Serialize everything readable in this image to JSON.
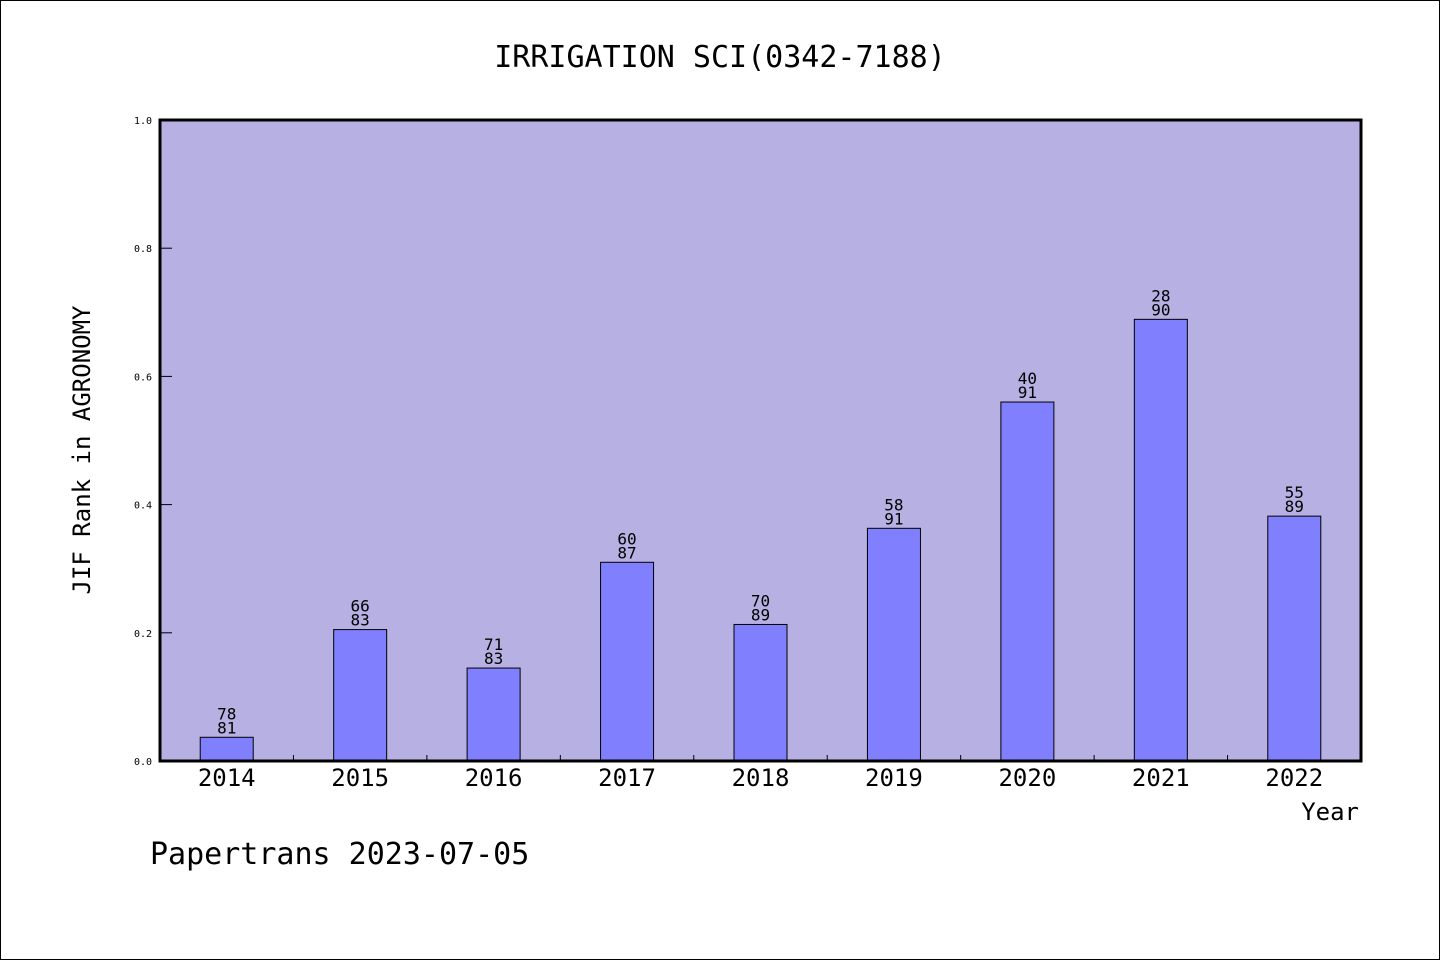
{
  "chart_data": {
    "type": "bar",
    "title": "IRRIGATION SCI(0342-7188)",
    "xlabel": "Year",
    "ylabel": "JIF Rank in AGRONOMY",
    "ylim": [
      0,
      1.0
    ],
    "yticks": [
      "0.0",
      "0.2",
      "0.4",
      "0.6",
      "0.8",
      "1.0"
    ],
    "categories": [
      "2014",
      "2015",
      "2016",
      "2017",
      "2018",
      "2019",
      "2020",
      "2021",
      "2022"
    ],
    "values": [
      0.037,
      0.205,
      0.145,
      0.31,
      0.213,
      0.363,
      0.56,
      0.689,
      0.382
    ],
    "ranks": [
      "78",
      "66",
      "71",
      "60",
      "70",
      "58",
      "40",
      "28",
      "55"
    ],
    "totals": [
      "81",
      "83",
      "83",
      "87",
      "89",
      "91",
      "91",
      "90",
      "89"
    ],
    "grid": false,
    "colors": {
      "plot_bg": "#b7b0e2",
      "bar": "#8080ff"
    }
  },
  "footer": "Papertrans 2023-07-05"
}
